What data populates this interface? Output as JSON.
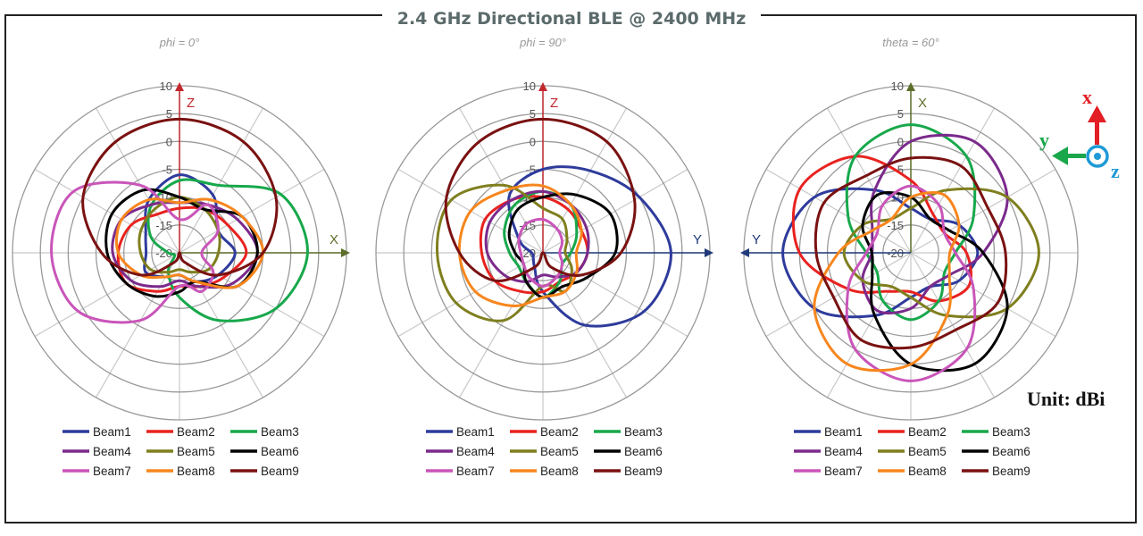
{
  "title": "2.4 GHz Directional BLE @ 2400 MHz",
  "unit_label": "Unit: dBi",
  "coordinate_icon": {
    "x_label": "x",
    "y_label": "y",
    "z_label": "z",
    "x_color": "#e31e24",
    "y_color": "#1aa64a",
    "z_color": "#1e9ad6"
  },
  "beam_colors": {
    "Beam1": "#2e3b9c",
    "Beam2": "#e8221f",
    "Beam3": "#17a84b",
    "Beam4": "#7b2a8c",
    "Beam5": "#7f7f1f",
    "Beam6": "#000000",
    "Beam7": "#c955b9",
    "Beam8": "#f7861d",
    "Beam9": "#7a1111"
  },
  "chart_data": [
    {
      "type": "polar",
      "title": "phi = 0°",
      "axis_up": {
        "label": "Z",
        "color": "#c0282d"
      },
      "axis_side": {
        "label": "X",
        "direction": "right",
        "color": "#5c6e2a"
      },
      "radial_ticks": [
        "10",
        "5",
        "0",
        "-5",
        "-10",
        "-15",
        "-20"
      ],
      "radial_range": [
        -20,
        10
      ],
      "angle_step_deg": 30,
      "grid": true,
      "legend_position": "bottom",
      "series": [
        {
          "name": "Beam1",
          "values": [
            -6,
            -8,
            -12,
            -10,
            -12,
            -14,
            -16,
            -15,
            -13,
            -14,
            -13,
            -9
          ]
        },
        {
          "name": "Beam2",
          "values": [
            -12,
            -11,
            -10,
            -8,
            -11,
            -13,
            -14,
            -12,
            -9,
            -9,
            -10,
            -12
          ]
        },
        {
          "name": "Beam3",
          "values": [
            -7,
            -6,
            1,
            3,
            0,
            -6,
            -12,
            -16,
            -19,
            -18,
            -14,
            -10
          ]
        },
        {
          "name": "Beam4",
          "values": [
            -11,
            -10,
            -8,
            -6,
            -9,
            -13,
            -15,
            -13,
            -10,
            -8,
            -8,
            -10
          ]
        },
        {
          "name": "Beam5",
          "values": [
            -10,
            -11,
            -12,
            -13,
            -14,
            -16,
            -17,
            -16,
            -14,
            -13,
            -12,
            -11
          ]
        },
        {
          "name": "Beam6",
          "values": [
            -10,
            -11,
            -7,
            -6,
            -8,
            -14,
            -13,
            -11,
            -9,
            -7,
            -6,
            -7
          ]
        },
        {
          "name": "Beam7",
          "values": [
            -14,
            -10,
            -12,
            -16,
            -13,
            -12,
            -14,
            -6,
            1,
            3,
            2,
            -6
          ]
        },
        {
          "name": "Beam8",
          "values": [
            -11,
            -9,
            -7,
            -5,
            -8,
            -14,
            -16,
            -15,
            -12,
            -9,
            -8,
            -9
          ]
        },
        {
          "name": "Beam9",
          "values": [
            4,
            3,
            0,
            -5,
            -12,
            -18,
            -20,
            -18,
            -12,
            -6,
            0,
            3
          ]
        }
      ]
    },
    {
      "type": "polar",
      "title": "phi = 90°",
      "axis_up": {
        "label": "Z",
        "color": "#c0282d"
      },
      "axis_side": {
        "label": "Y",
        "direction": "right",
        "color": "#1f3a7a"
      },
      "radial_ticks": [
        "10",
        "5",
        "0",
        "-5",
        "-10",
        "-15",
        "-20"
      ],
      "radial_range": [
        -20,
        10
      ],
      "angle_step_deg": 30,
      "grid": true,
      "legend_position": "bottom",
      "series": [
        {
          "name": "Beam1",
          "values": [
            -5,
            -3,
            0,
            3,
            1,
            -5,
            -13,
            -17,
            -18,
            -18,
            -15,
            -8
          ]
        },
        {
          "name": "Beam2",
          "values": [
            -10,
            -11,
            -12,
            -12,
            -13,
            -14,
            -13,
            -12,
            -10,
            -9,
            -8,
            -9
          ]
        },
        {
          "name": "Beam3",
          "values": [
            -9,
            -10,
            -13,
            -15,
            -16,
            -14,
            -12,
            -14,
            -15,
            -14,
            -12,
            -10
          ]
        },
        {
          "name": "Beam4",
          "values": [
            -9,
            -10,
            -11,
            -12,
            -13,
            -15,
            -16,
            -14,
            -12,
            -10,
            -9,
            -9
          ]
        },
        {
          "name": "Beam5",
          "values": [
            -12,
            -13,
            -15,
            -16,
            -14,
            -12,
            -14,
            -6,
            -2,
            -1,
            -1,
            -6
          ]
        },
        {
          "name": "Beam6",
          "values": [
            -10,
            -8,
            -6,
            -7,
            -11,
            -13,
            -12,
            -14,
            -16,
            -15,
            -13,
            -11
          ]
        },
        {
          "name": "Beam7",
          "values": [
            -14,
            -15,
            -16,
            -17,
            -16,
            -15,
            -14,
            -15,
            -16,
            -16,
            -15,
            -14
          ]
        },
        {
          "name": "Beam8",
          "values": [
            -8,
            -10,
            -12,
            -14,
            -13,
            -12,
            -12,
            -9,
            -6,
            -5,
            -5,
            -7
          ]
        },
        {
          "name": "Beam9",
          "values": [
            4,
            3,
            -1,
            -6,
            -12,
            -17,
            -20,
            -17,
            -10,
            -5,
            0,
            3
          ]
        }
      ]
    },
    {
      "type": "polar",
      "title": "theta = 60°",
      "axis_up": {
        "label": "X",
        "color": "#5c6e2a"
      },
      "axis_side": {
        "label": "Y",
        "direction": "left",
        "color": "#1f3a7a"
      },
      "radial_ticks": [
        "10",
        "5",
        "0",
        "-5",
        "-10",
        "-15",
        "-20"
      ],
      "radial_range": [
        -20,
        10
      ],
      "angle_step_deg": 30,
      "grid": true,
      "legend_position": "bottom",
      "series": [
        {
          "name": "Beam1",
          "values": [
            -12,
            -13,
            -10,
            -8,
            -10,
            -13,
            -12,
            -7,
            0,
            3,
            0,
            -7
          ]
        },
        {
          "name": "Beam2",
          "values": [
            -7,
            -12,
            -13,
            -10,
            -8,
            -10,
            -13,
            -12,
            -7,
            0,
            3,
            0
          ]
        },
        {
          "name": "Beam3",
          "values": [
            3,
            0,
            -7,
            -12,
            -13,
            -10,
            -8,
            -10,
            -13,
            -12,
            -7,
            0
          ]
        },
        {
          "name": "Beam4",
          "values": [
            0,
            3,
            0,
            -7,
            -12,
            -13,
            -10,
            -8,
            -10,
            -13,
            -12,
            -7
          ]
        },
        {
          "name": "Beam5",
          "values": [
            -12,
            -7,
            0,
            3,
            0,
            -7,
            -12,
            -13,
            -10,
            -8,
            -10,
            -13
          ]
        },
        {
          "name": "Beam6",
          "values": [
            -10,
            -13,
            -12,
            -7,
            0,
            3,
            0,
            -7,
            -12,
            -13,
            -10,
            -8
          ]
        },
        {
          "name": "Beam7",
          "values": [
            -8,
            -10,
            -13,
            -12,
            -7,
            0,
            3,
            0,
            -7,
            -12,
            -13,
            -10
          ]
        },
        {
          "name": "Beam8",
          "values": [
            -10,
            -8,
            -10,
            -13,
            -12,
            -7,
            0,
            3,
            0,
            -7,
            -12,
            -13
          ]
        },
        {
          "name": "Beam9",
          "values": [
            -3,
            -2,
            -4,
            -3,
            -2,
            -4,
            -3,
            -2,
            -4,
            -3,
            -2,
            -4
          ]
        }
      ]
    }
  ]
}
